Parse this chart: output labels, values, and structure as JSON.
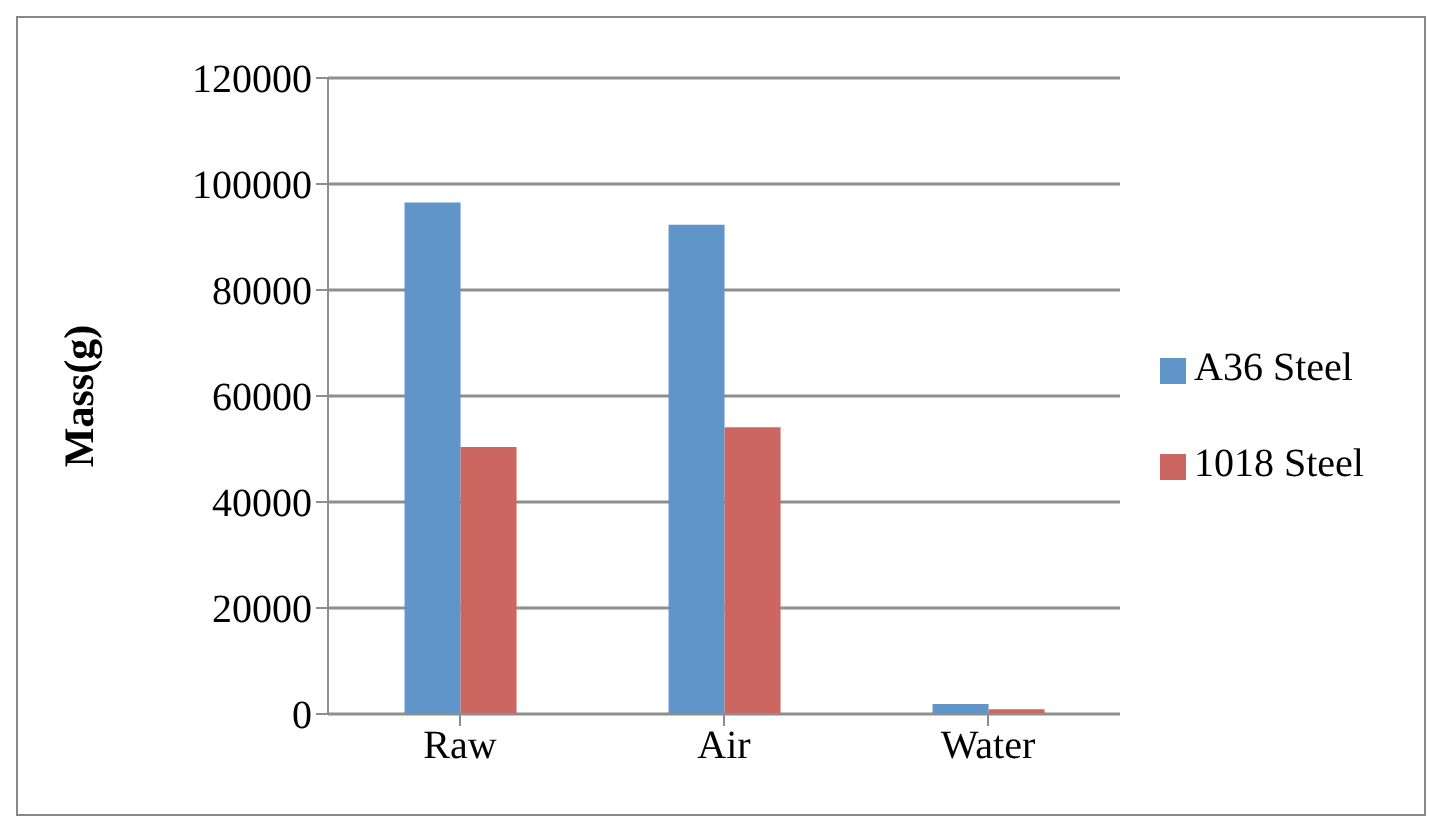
{
  "chart_data": {
    "type": "bar",
    "ylabel": "Mass(g)",
    "categories": [
      "Raw",
      "Air",
      "Water"
    ],
    "series": [
      {
        "name": "A36 Steel",
        "color": "#5f95c9",
        "values": [
          96500,
          92300,
          1900
        ]
      },
      {
        "name": "1018 Steel",
        "color": "#cc6660",
        "values": [
          50400,
          54100,
          900
        ]
      }
    ],
    "ylim": [
      0,
      120000
    ],
    "yticks": [
      0,
      20000,
      40000,
      60000,
      80000,
      100000,
      120000
    ],
    "grid": "y",
    "legend": "right"
  }
}
